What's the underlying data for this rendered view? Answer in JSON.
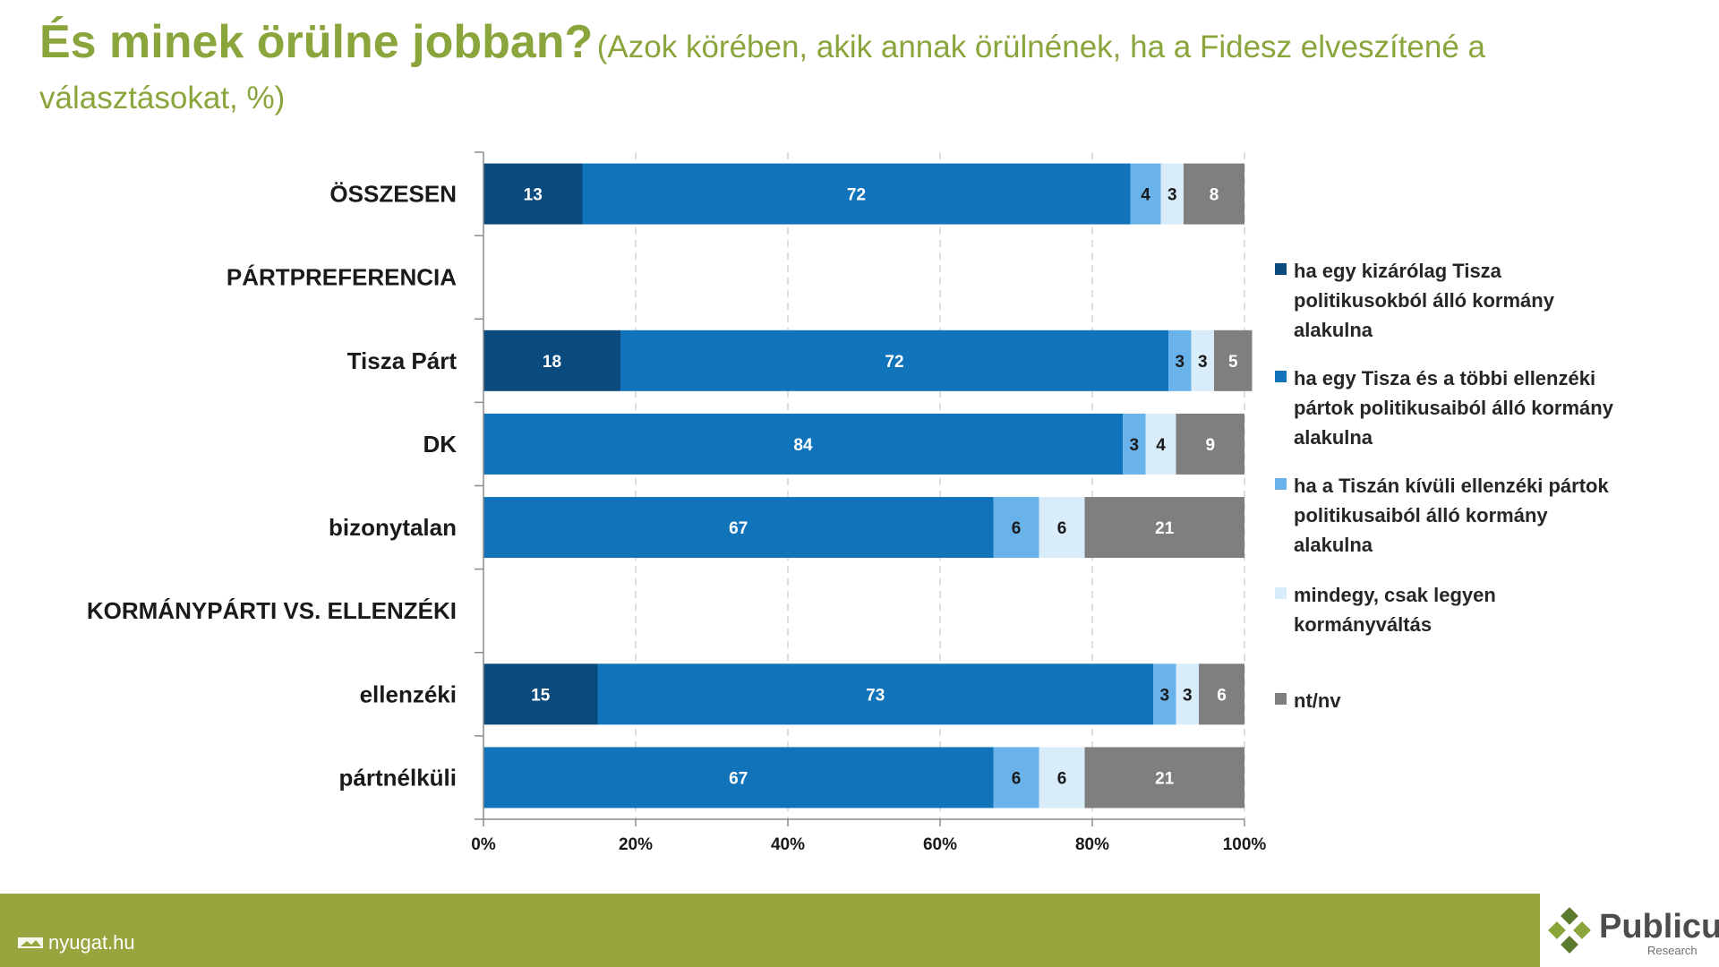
{
  "title": {
    "main": "És minek örülne jobban?",
    "subtitle": "(Azok körében, akik annak örülnének, ha a Fidesz elveszítené a választásokat, %)"
  },
  "chart_data": {
    "type": "bar",
    "orientation": "horizontal",
    "stacked": true,
    "xlim": [
      0,
      100
    ],
    "x_ticks": [
      "0%",
      "20%",
      "40%",
      "60%",
      "80%",
      "100%"
    ],
    "grid": "vertical dashed",
    "legend_position": "right",
    "categories": [
      "ÖSSZESEN",
      "PÁRTPREFERENCIA",
      "Tisza Párt",
      "DK",
      "bizonytalan",
      "KORMÁNYPÁRTI VS. ELLENZÉKI",
      "ellenzéki",
      "pártnélküli"
    ],
    "series": [
      {
        "name": "ha egy kizárólag Tisza politikusokból álló kormány alakulna",
        "color": "#0b4a7d",
        "label_color": "#ffffff",
        "values": [
          13,
          null,
          18,
          0,
          0,
          null,
          15,
          0
        ]
      },
      {
        "name": "ha egy Tisza és a többi ellenzéki pártok politikusaiból álló kormány alakulna",
        "color": "#1173b9",
        "label_color": "#ffffff",
        "values": [
          72,
          null,
          72,
          84,
          67,
          null,
          73,
          67
        ]
      },
      {
        "name": "ha a Tiszán kívüli ellenzéki pártok politikusaiból álló kormány alakulna",
        "color": "#6ab3ea",
        "label_color": "#1a1a1a",
        "values": [
          4,
          null,
          3,
          3,
          6,
          null,
          3,
          6
        ]
      },
      {
        "name": "mindegy, csak legyen kormányváltás",
        "color": "#d9ecfa",
        "label_color": "#1a1a1a",
        "values": [
          3,
          null,
          3,
          4,
          6,
          null,
          3,
          6
        ]
      },
      {
        "name": "nt/nv",
        "color": "#7f7f7f",
        "label_color": "#ffffff",
        "values": [
          8,
          null,
          5,
          9,
          21,
          null,
          6,
          21
        ]
      }
    ]
  },
  "legend": [
    {
      "label_lines": [
        "ha egy kizárólag Tisza",
        "politikusokból álló kormány",
        "alakulna"
      ],
      "color": "#0b4a7d"
    },
    {
      "label_lines": [
        "ha egy Tisza és a többi ellenzéki",
        "pártok politikusaiból álló kormány",
        "alakulna"
      ],
      "color": "#1173b9"
    },
    {
      "label_lines": [
        "ha a Tiszán kívüli ellenzéki pártok",
        "politikusaiból álló kormány",
        "alakulna"
      ],
      "color": "#6ab3ea"
    },
    {
      "label_lines": [
        "mindegy, csak legyen",
        "kormányváltás"
      ],
      "color": "#d9ecfa"
    },
    {
      "label_lines": [
        "nt/nv"
      ],
      "color": "#7f7f7f"
    }
  ],
  "footer": {
    "source": "nyugat.hu",
    "logo_name": "Publicus",
    "logo_sub": "Research"
  }
}
